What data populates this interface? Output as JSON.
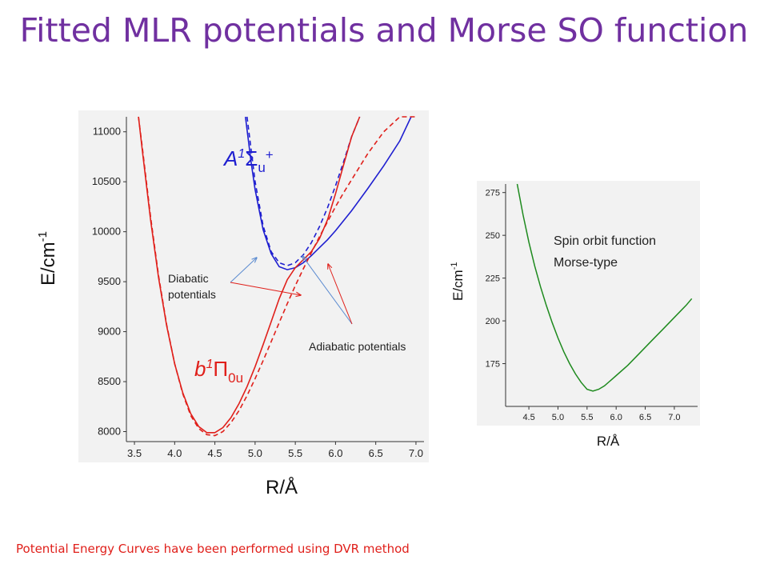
{
  "slide": {
    "title": "Fitted MLR potentials and Morse SO function",
    "footnote": "Potential Energy Curves have been performed using DVR method"
  },
  "colors": {
    "title": "#7030a0",
    "footnote": "#e0201b",
    "A_state": "#1f1fd0",
    "b_state": "#e0201b",
    "so_curve": "#1e8a1e",
    "arrow_blue": "#5b8bd0"
  },
  "chart_data": [
    {
      "type": "line",
      "title": "",
      "xlabel": "R/Å",
      "ylabel": "E/cm",
      "ylabel_sup": "-1",
      "xlim": [
        3.4,
        7.1
      ],
      "ylim": [
        7900,
        11150
      ],
      "xticks": [
        3.5,
        4.0,
        4.5,
        5.0,
        5.5,
        6.0,
        6.5,
        7.0
      ],
      "yticks": [
        8000,
        8500,
        9000,
        9500,
        10000,
        10500,
        11000
      ],
      "grid": false,
      "series": [
        {
          "name": "",
          "state": "A",
          "style": "solid",
          "x": [
            4.88,
            4.95,
            5.0,
            5.1,
            5.2,
            5.3,
            5.4,
            5.5,
            5.6,
            5.7,
            5.8,
            5.9,
            6.0,
            6.2,
            6.4,
            6.6,
            6.8,
            6.94
          ],
          "y": [
            11150,
            10700,
            10420,
            10020,
            9780,
            9650,
            9620,
            9640,
            9690,
            9760,
            9840,
            9920,
            10010,
            10210,
            10430,
            10660,
            10910,
            11150
          ]
        },
        {
          "name": "",
          "state": "A",
          "style": "dashed",
          "x": [
            4.9,
            5.0,
            5.1,
            5.2,
            5.3,
            5.4,
            5.5,
            5.6,
            5.7,
            5.8,
            5.9,
            6.0,
            6.1,
            6.2,
            6.3
          ],
          "y": [
            11150,
            10500,
            10060,
            9800,
            9690,
            9660,
            9690,
            9770,
            9890,
            10050,
            10240,
            10460,
            10700,
            10950,
            11150
          ]
        },
        {
          "name": "",
          "state": "b",
          "style": "solid",
          "x": [
            3.55,
            3.6,
            3.7,
            3.8,
            3.9,
            4.0,
            4.1,
            4.2,
            4.3,
            4.4,
            4.5,
            4.6,
            4.7,
            4.8,
            4.9,
            5.0,
            5.1,
            5.2,
            5.3,
            5.4,
            5.5,
            5.6,
            5.7,
            5.8,
            5.9,
            6.0,
            6.1,
            6.2,
            6.3
          ],
          "y": [
            11150,
            10800,
            10120,
            9540,
            9060,
            8680,
            8390,
            8180,
            8050,
            7990,
            7990,
            8040,
            8140,
            8280,
            8450,
            8650,
            8870,
            9100,
            9330,
            9520,
            9640,
            9720,
            9800,
            9930,
            10120,
            10380,
            10670,
            10950,
            11150
          ]
        },
        {
          "name": "",
          "state": "b",
          "style": "dashed",
          "x": [
            3.55,
            3.6,
            3.7,
            3.8,
            3.9,
            4.0,
            4.1,
            4.2,
            4.3,
            4.4,
            4.5,
            4.6,
            4.7,
            4.8,
            4.9,
            5.0,
            5.1,
            5.2,
            5.3,
            5.4,
            5.5,
            5.6,
            5.7,
            5.8,
            5.9,
            6.0,
            6.1,
            6.2,
            6.4,
            6.6,
            6.8,
            7.0
          ],
          "y": [
            11150,
            10830,
            10150,
            9560,
            9070,
            8680,
            8380,
            8160,
            8030,
            7970,
            7960,
            8000,
            8090,
            8210,
            8360,
            8530,
            8710,
            8900,
            9090,
            9280,
            9460,
            9630,
            9790,
            9950,
            10100,
            10250,
            10390,
            10520,
            10780,
            11000,
            11150,
            11150
          ]
        }
      ],
      "annotations": {
        "A_label": "A",
        "A_sup": "1",
        "A_symbol": "Σ",
        "A_sub": "u",
        "A_sup2": "+",
        "b_label": "b",
        "b_sup": "1",
        "b_symbol": "Π",
        "b_sub": "0u",
        "diabatic_line1": "Diabatic",
        "diabatic_line2": "potentials",
        "adiabatic": "Adiabatic potentials"
      }
    },
    {
      "type": "line",
      "title": "",
      "xlabel": "R/Å",
      "ylabel": "E/cm",
      "ylabel_sup": "-1",
      "xlim": [
        4.1,
        7.4
      ],
      "ylim": [
        150,
        280
      ],
      "xticks": [
        4.5,
        5.0,
        5.5,
        6.0,
        6.5,
        7.0
      ],
      "yticks": [
        175,
        200,
        225,
        250,
        275
      ],
      "grid": false,
      "legend_text": [
        "Spin orbit function",
        "Morse-type"
      ],
      "series": [
        {
          "name": "",
          "style": "solid",
          "x": [
            4.3,
            4.4,
            4.5,
            4.6,
            4.7,
            4.8,
            4.9,
            5.0,
            5.1,
            5.2,
            5.3,
            5.4,
            5.5,
            5.6,
            5.7,
            5.8,
            5.9,
            6.0,
            6.2,
            6.4,
            6.6,
            6.8,
            7.0,
            7.2,
            7.3
          ],
          "y": [
            280,
            262,
            246,
            232,
            220,
            209,
            199,
            190,
            182,
            175,
            169,
            164,
            160,
            159,
            160,
            162,
            165,
            168,
            174,
            181,
            188,
            195,
            202,
            209,
            213
          ]
        }
      ]
    }
  ]
}
